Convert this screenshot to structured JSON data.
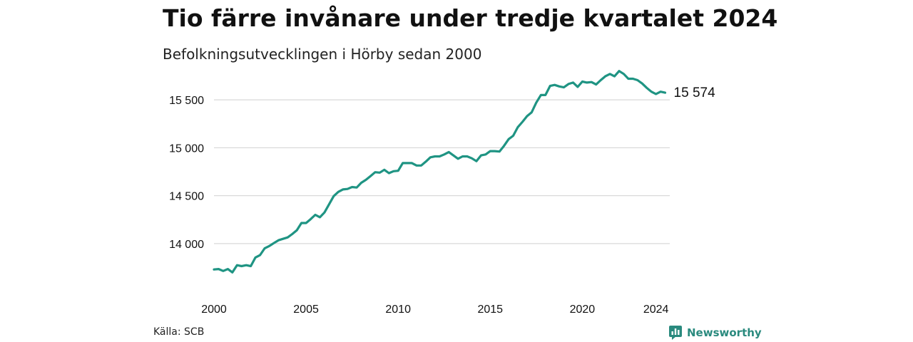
{
  "title": "Tio färre invånare under tredje kvartalet 2024",
  "subtitle": "Befolkningsutvecklingen i Hörby sedan 2000",
  "source": "Källa: SCB",
  "brand": "Newsworthy",
  "colors": {
    "line": "#1f9483",
    "grid": "#d9d9d9",
    "brand": "#2a8a7e"
  },
  "chart_data": {
    "type": "line",
    "title": "Tio färre invånare under tredje kvartalet 2024",
    "subtitle": "Befolkningsutvecklingen i Hörby sedan 2000",
    "xlabel": "",
    "ylabel": "",
    "grid": true,
    "legend": "none",
    "xlim": [
      2000,
      2024.75
    ],
    "ylim": [
      13650,
      15850
    ],
    "x_ticks": [
      2000,
      2005,
      2010,
      2015,
      2020,
      2024
    ],
    "x_tick_labels": [
      "2000",
      "2005",
      "2010",
      "2015",
      "2020",
      "2024"
    ],
    "y_ticks": [
      14000,
      14500,
      15000,
      15500
    ],
    "y_tick_labels": [
      "14 000",
      "14 500",
      "15 000",
      "15 500"
    ],
    "end_label": "15 574",
    "series": [
      {
        "x": [
          2000.0,
          2000.25,
          2000.5,
          2000.75,
          2001.0,
          2001.25,
          2001.5,
          2001.75,
          2002.0,
          2002.25,
          2002.5,
          2002.75,
          2003.0,
          2003.25,
          2003.5,
          2003.75,
          2004.0,
          2004.25,
          2004.5,
          2004.75,
          2005.0,
          2005.25,
          2005.5,
          2005.75,
          2006.0,
          2006.25,
          2006.5,
          2006.75,
          2007.0,
          2007.25,
          2007.5,
          2007.75,
          2008.0,
          2008.25,
          2008.5,
          2008.75,
          2009.0,
          2009.25,
          2009.5,
          2009.75,
          2010.0,
          2010.25,
          2010.5,
          2010.75,
          2011.0,
          2011.25,
          2011.5,
          2011.75,
          2012.0,
          2012.25,
          2012.5,
          2012.75,
          2013.0,
          2013.25,
          2013.5,
          2013.75,
          2014.0,
          2014.25,
          2014.5,
          2014.75,
          2015.0,
          2015.25,
          2015.5,
          2015.75,
          2016.0,
          2016.25,
          2016.5,
          2016.75,
          2017.0,
          2017.25,
          2017.5,
          2017.75,
          2018.0,
          2018.25,
          2018.5,
          2018.75,
          2019.0,
          2019.25,
          2019.5,
          2019.75,
          2020.0,
          2020.25,
          2020.5,
          2020.75,
          2021.0,
          2021.25,
          2021.5,
          2021.75,
          2022.0,
          2022.25,
          2022.5,
          2022.75,
          2023.0,
          2023.25,
          2023.5,
          2023.75,
          2024.0,
          2024.25,
          2024.5
        ],
        "values": [
          13730,
          13735,
          13715,
          13735,
          13700,
          13775,
          13765,
          13775,
          13765,
          13855,
          13880,
          13950,
          13975,
          14005,
          14035,
          14050,
          14065,
          14100,
          14140,
          14215,
          14215,
          14255,
          14300,
          14275,
          14325,
          14410,
          14495,
          14540,
          14565,
          14570,
          14590,
          14585,
          14635,
          14665,
          14705,
          14745,
          14740,
          14770,
          14735,
          14755,
          14760,
          14840,
          14840,
          14840,
          14815,
          14815,
          14855,
          14900,
          14910,
          14910,
          14930,
          14955,
          14920,
          14885,
          14910,
          14910,
          14890,
          14860,
          14920,
          14930,
          14965,
          14965,
          14960,
          15020,
          15090,
          15125,
          15215,
          15270,
          15330,
          15370,
          15470,
          15550,
          15550,
          15645,
          15655,
          15640,
          15630,
          15665,
          15680,
          15635,
          15690,
          15680,
          15685,
          15660,
          15705,
          15745,
          15770,
          15745,
          15800,
          15770,
          15720,
          15720,
          15705,
          15670,
          15625,
          15585,
          15560,
          15585,
          15574
        ]
      }
    ]
  }
}
